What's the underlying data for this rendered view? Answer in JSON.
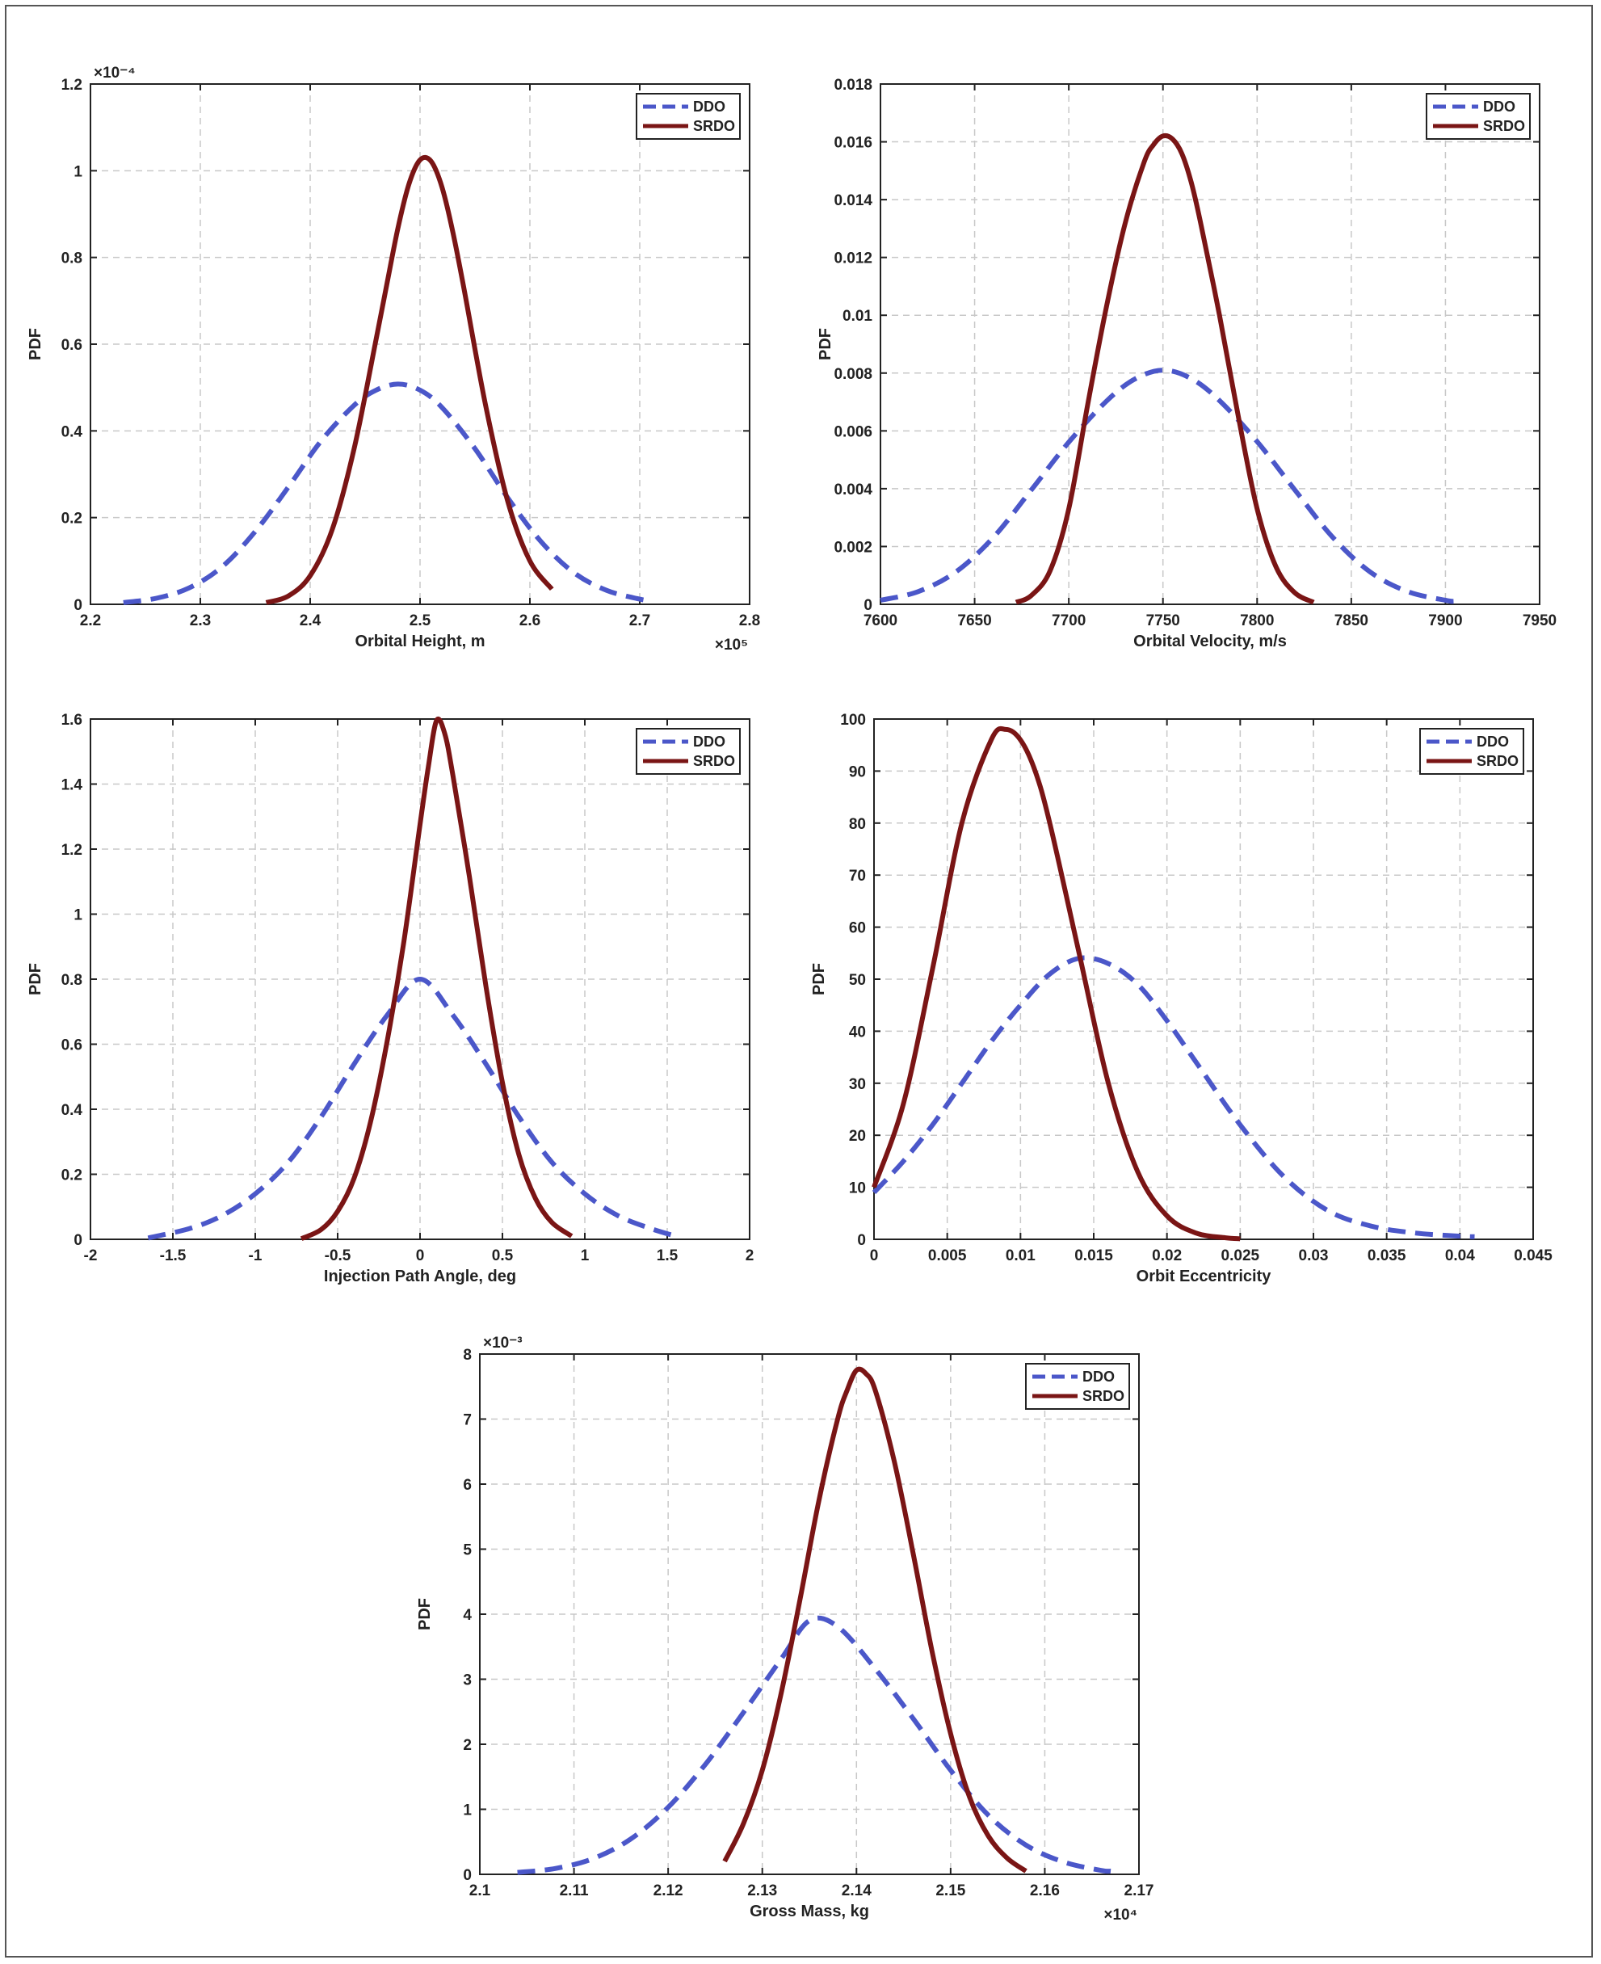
{
  "style": {
    "ddo_color": "#4b57c9",
    "srdo_color": "#7a1515",
    "grid_color": "#c8c8c8"
  },
  "chart_data": [
    {
      "id": "orbital-height",
      "type": "line",
      "xlabel": "Orbital Height, m",
      "ylabel": "PDF",
      "x_exponent": "×10⁵",
      "y_exponent": "×10⁻⁴",
      "xlim": [
        2.2,
        2.8
      ],
      "ylim": [
        0,
        1.2
      ],
      "xticks": [
        2.2,
        2.3,
        2.4,
        2.5,
        2.6,
        2.7,
        2.8
      ],
      "yticks": [
        0,
        0.2,
        0.4,
        0.6,
        0.8,
        1,
        1.2
      ],
      "xtick_labels": [
        "2.2",
        "2.3",
        "2.4",
        "2.5",
        "2.6",
        "2.7",
        "2.8"
      ],
      "ytick_labels": [
        "0",
        "0.2",
        "0.4",
        "0.6",
        "0.8",
        "1",
        "1.2"
      ],
      "grid": true,
      "legend": "top-right",
      "series": [
        {
          "name": "DDO",
          "style": "dashed",
          "x": [
            2.23,
            2.26,
            2.29,
            2.32,
            2.35,
            2.38,
            2.41,
            2.44,
            2.46,
            2.48,
            2.5,
            2.52,
            2.55,
            2.58,
            2.61,
            2.64,
            2.67,
            2.7,
            2.71
          ],
          "y": [
            0.004,
            0.014,
            0.038,
            0.087,
            0.168,
            0.27,
            0.377,
            0.459,
            0.494,
            0.508,
            0.494,
            0.454,
            0.359,
            0.245,
            0.145,
            0.073,
            0.032,
            0.012,
            0.008
          ]
        },
        {
          "name": "SRDO",
          "style": "solid",
          "x": [
            2.36,
            2.38,
            2.4,
            2.42,
            2.44,
            2.46,
            2.47,
            2.48,
            2.49,
            2.5,
            2.51,
            2.52,
            2.53,
            2.54,
            2.56,
            2.58,
            2.6,
            2.62
          ],
          "y": [
            0.004,
            0.019,
            0.066,
            0.172,
            0.359,
            0.611,
            0.741,
            0.869,
            0.97,
            1.025,
            1.022,
            0.962,
            0.857,
            0.728,
            0.455,
            0.236,
            0.1,
            0.035
          ]
        }
      ]
    },
    {
      "id": "orbital-velocity",
      "type": "line",
      "xlabel": "Orbital Velocity, m/s",
      "ylabel": "PDF",
      "x_exponent": "",
      "y_exponent": "",
      "xlim": [
        7600,
        7950
      ],
      "ylim": [
        0,
        0.018
      ],
      "xticks": [
        7600,
        7650,
        7700,
        7750,
        7800,
        7850,
        7900,
        7950
      ],
      "yticks": [
        0,
        0.002,
        0.004,
        0.006,
        0.008,
        0.01,
        0.012,
        0.014,
        0.016,
        0.018
      ],
      "xtick_labels": [
        "7600",
        "7650",
        "7700",
        "7750",
        "7800",
        "7850",
        "7900",
        "7950"
      ],
      "ytick_labels": [
        "0",
        "0.002",
        "0.004",
        "0.006",
        "0.008",
        "0.01",
        "0.012",
        "0.014",
        "0.016",
        "0.018"
      ],
      "grid": true,
      "legend": "top-right",
      "series": [
        {
          "name": "DDO",
          "style": "dashed",
          "x": [
            7600,
            7620,
            7640,
            7660,
            7680,
            7700,
            7720,
            7735,
            7750,
            7765,
            7780,
            7800,
            7820,
            7840,
            7860,
            7880,
            7900,
            7905
          ],
          "y": [
            0.00014,
            0.00044,
            0.00112,
            0.00232,
            0.00395,
            0.00561,
            0.00703,
            0.00779,
            0.0081,
            0.00781,
            0.00705,
            0.00563,
            0.00396,
            0.00233,
            0.00112,
            0.00044,
            0.00014,
            0.0001
          ]
        },
        {
          "name": "SRDO",
          "style": "solid",
          "x": [
            7672,
            7680,
            7690,
            7700,
            7710,
            7720,
            7730,
            7740,
            7745,
            7750,
            7755,
            7760,
            7765,
            7770,
            7780,
            7790,
            7800,
            7810,
            7820,
            7830
          ],
          "y": [
            7e-05,
            0.0003,
            0.00115,
            0.0033,
            0.0069,
            0.0103,
            0.0132,
            0.0153,
            0.0159,
            0.0162,
            0.0161,
            0.0156,
            0.0146,
            0.0132,
            0.01,
            0.0065,
            0.0033,
            0.0013,
            0.0004,
            7e-05
          ]
        }
      ]
    },
    {
      "id": "injection-path-angle",
      "type": "line",
      "xlabel": "Injection Path Angle, deg",
      "ylabel": "PDF",
      "x_exponent": "",
      "y_exponent": "",
      "xlim": [
        -2,
        2
      ],
      "ylim": [
        0,
        1.6
      ],
      "xticks": [
        -2,
        -1.5,
        -1,
        -0.5,
        0,
        0.5,
        1,
        1.5,
        2
      ],
      "yticks": [
        0,
        0.2,
        0.4,
        0.6,
        0.8,
        1,
        1.2,
        1.4,
        1.6
      ],
      "xtick_labels": [
        "-2",
        "-1.5",
        "-1",
        "-0.5",
        "0",
        "0.5",
        "1",
        "1.5",
        "2"
      ],
      "ytick_labels": [
        "0",
        "0.2",
        "0.4",
        "0.6",
        "0.8",
        "1",
        "1.2",
        "1.4",
        "1.6"
      ],
      "grid": true,
      "legend": "top-right",
      "series": [
        {
          "name": "DDO",
          "style": "dashed",
          "x": [
            -1.65,
            -1.4,
            -1.2,
            -1.0,
            -0.8,
            -0.6,
            -0.4,
            -0.2,
            0,
            0.2,
            0.4,
            0.6,
            0.8,
            1.0,
            1.2,
            1.4,
            1.55
          ],
          "y": [
            0.004,
            0.033,
            0.073,
            0.14,
            0.237,
            0.377,
            0.539,
            0.689,
            0.8,
            0.689,
            0.539,
            0.377,
            0.237,
            0.14,
            0.073,
            0.033,
            0.01
          ]
        },
        {
          "name": "SRDO",
          "style": "solid",
          "x": [
            -0.72,
            -0.6,
            -0.5,
            -0.4,
            -0.3,
            -0.2,
            -0.1,
            0,
            0.05,
            0.1,
            0.15,
            0.2,
            0.3,
            0.4,
            0.5,
            0.6,
            0.7,
            0.8,
            0.92
          ],
          "y": [
            0.002,
            0.03,
            0.086,
            0.188,
            0.362,
            0.608,
            0.909,
            1.276,
            1.452,
            1.595,
            1.555,
            1.425,
            1.114,
            0.778,
            0.482,
            0.26,
            0.126,
            0.052,
            0.01
          ]
        }
      ]
    },
    {
      "id": "orbit-eccentricity",
      "type": "line",
      "xlabel": "Orbit Eccentricity",
      "ylabel": "PDF",
      "x_exponent": "",
      "y_exponent": "",
      "xlim": [
        0,
        0.045
      ],
      "ylim": [
        0,
        100
      ],
      "xticks": [
        0,
        0.005,
        0.01,
        0.015,
        0.02,
        0.025,
        0.03,
        0.035,
        0.04,
        0.045
      ],
      "yticks": [
        0,
        10,
        20,
        30,
        40,
        50,
        60,
        70,
        80,
        90,
        100
      ],
      "xtick_labels": [
        "0",
        "0.005",
        "0.01",
        "0.015",
        "0.02",
        "0.025",
        "0.03",
        "0.035",
        "0.04",
        "0.045"
      ],
      "ytick_labels": [
        "0",
        "10",
        "20",
        "30",
        "40",
        "50",
        "60",
        "70",
        "80",
        "90",
        "100"
      ],
      "grid": true,
      "legend": "top-right",
      "series": [
        {
          "name": "DDO",
          "style": "dashed",
          "x": [
            0,
            0.002,
            0.004,
            0.006,
            0.008,
            0.01,
            0.012,
            0.014,
            0.016,
            0.018,
            0.02,
            0.022,
            0.025,
            0.028,
            0.031,
            0.034,
            0.037,
            0.04,
            0.041
          ],
          "y": [
            9,
            15,
            22,
            30,
            38,
            45,
            51,
            54,
            53,
            49,
            42,
            34,
            22,
            12,
            5.5,
            2.5,
            1.2,
            0.6,
            0.5
          ]
        },
        {
          "name": "SRDO",
          "style": "solid",
          "x": [
            0,
            0.002,
            0.004,
            0.006,
            0.008,
            0.009,
            0.01,
            0.011,
            0.012,
            0.014,
            0.016,
            0.018,
            0.02,
            0.022,
            0.024,
            0.025
          ],
          "y": [
            10,
            26,
            52,
            80,
            96,
            98,
            96,
            90,
            80,
            55,
            30,
            13,
            4.5,
            1.2,
            0.3,
            0.1
          ]
        }
      ]
    },
    {
      "id": "gross-mass",
      "type": "line",
      "xlabel": "Gross Mass, kg",
      "ylabel": "PDF",
      "x_exponent": "×10⁴",
      "y_exponent": "×10⁻³",
      "xlim": [
        2.1,
        2.17
      ],
      "ylim": [
        0,
        8
      ],
      "xticks": [
        2.1,
        2.11,
        2.12,
        2.13,
        2.14,
        2.15,
        2.16,
        2.17
      ],
      "yticks": [
        0,
        1,
        2,
        3,
        4,
        5,
        6,
        7,
        8
      ],
      "xtick_labels": [
        "2.1",
        "2.11",
        "2.12",
        "2.13",
        "2.14",
        "2.15",
        "2.16",
        "2.17"
      ],
      "ytick_labels": [
        "0",
        "1",
        "2",
        "3",
        "4",
        "5",
        "6",
        "7",
        "8"
      ],
      "grid": true,
      "legend": "top-right",
      "series": [
        {
          "name": "DDO",
          "style": "dashed",
          "x": [
            2.104,
            2.108,
            2.112,
            2.116,
            2.12,
            2.124,
            2.128,
            2.132,
            2.135,
            2.138,
            2.142,
            2.146,
            2.15,
            2.154,
            2.158,
            2.162,
            2.166,
            2.167
          ],
          "y": [
            0.03,
            0.09,
            0.24,
            0.54,
            1.03,
            1.7,
            2.49,
            3.31,
            3.9,
            3.81,
            3.16,
            2.4,
            1.6,
            0.91,
            0.45,
            0.19,
            0.06,
            0.05
          ]
        },
        {
          "name": "SRDO",
          "style": "solid",
          "x": [
            2.126,
            2.128,
            2.13,
            2.132,
            2.134,
            2.136,
            2.138,
            2.139,
            2.14,
            2.141,
            2.142,
            2.144,
            2.146,
            2.148,
            2.15,
            2.152,
            2.154,
            2.156,
            2.158
          ],
          "y": [
            0.2,
            0.78,
            1.6,
            2.78,
            4.22,
            5.74,
            7.0,
            7.44,
            7.75,
            7.7,
            7.44,
            6.36,
            4.95,
            3.45,
            2.16,
            1.19,
            0.59,
            0.25,
            0.05
          ]
        }
      ]
    }
  ]
}
